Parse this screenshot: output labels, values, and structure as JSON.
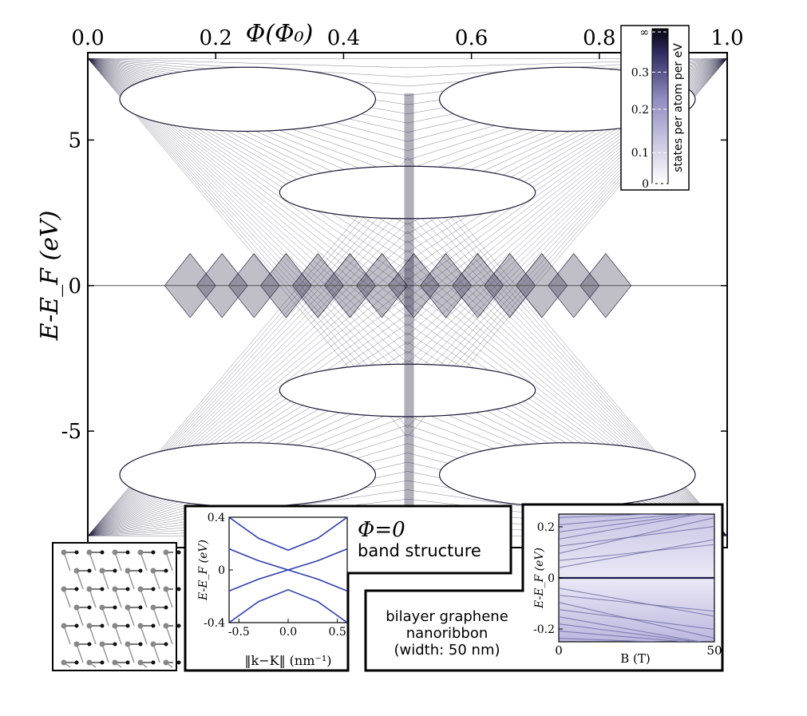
{
  "chart_data": [
    {
      "type": "heatmap",
      "xlabel": "Φ(Φ₀)",
      "ylabel": "E-E_F (eV)",
      "xlim": [
        0.0,
        1.0
      ],
      "ylim": [
        -9,
        8
      ],
      "xticks": [
        "0.0",
        "0.2",
        "0.4",
        "0.6",
        "0.8",
        "1.0"
      ],
      "xtick_values": [
        0.0,
        0.2,
        0.4,
        0.6,
        0.8,
        1.0
      ],
      "yticks": [
        "5",
        "0",
        "-5"
      ],
      "ytick_values": [
        5,
        0,
        -5
      ],
      "colorbar": {
        "label": "states per atom per eV",
        "ticks": [
          "∞",
          "0.3",
          "0.2",
          "0.1",
          "0"
        ],
        "tick_values": [
          999,
          0.3,
          0.2,
          0.1,
          0
        ],
        "color_low": "#ffffff",
        "color_high": "#0b0b1e"
      },
      "accent_color": "#1c1a3a",
      "description_series": [
        {
          "name": "Landau fan up",
          "x": [
            0.0,
            0.5,
            1.0
          ],
          "y": [
            7.8,
            6.6,
            7.8
          ]
        },
        {
          "name": "flat zero band",
          "x": [
            0.0,
            1.0
          ],
          "y": [
            0.0,
            0.0
          ]
        }
      ]
    },
    {
      "type": "line",
      "title": "",
      "annotation_line1": "Φ=0",
      "annotation_line2": "band structure",
      "xlabel": "‖k−K‖ (nm⁻¹)",
      "ylabel": "E-E_F (eV)",
      "xlim": [
        -0.6,
        0.6
      ],
      "ylim": [
        -0.4,
        0.4
      ],
      "xticks": [
        "-0.5",
        "0.0",
        "0.5"
      ],
      "xtick_values": [
        -0.5,
        0.0,
        0.5
      ],
      "yticks": [
        "0.4",
        "0",
        "-0.4"
      ],
      "ytick_values": [
        0.4,
        0,
        -0.4
      ],
      "line_color": "#2f3fae",
      "series": [
        {
          "x": [
            -0.6,
            -0.3,
            0,
            0.3,
            0.6
          ],
          "y": [
            0.4,
            0.24,
            0.15,
            0.24,
            0.4
          ]
        },
        {
          "x": [
            -0.6,
            -0.3,
            0,
            0.3,
            0.6
          ],
          "y": [
            0.16,
            0.07,
            0.0,
            0.07,
            0.16
          ]
        },
        {
          "x": [
            -0.6,
            -0.3,
            0,
            0.3,
            0.6
          ],
          "y": [
            -0.16,
            -0.07,
            0.0,
            -0.07,
            -0.16
          ]
        },
        {
          "x": [
            -0.6,
            -0.3,
            0,
            0.3,
            0.6
          ],
          "y": [
            -0.4,
            -0.24,
            -0.15,
            -0.24,
            -0.4
          ]
        }
      ]
    },
    {
      "type": "heatmap",
      "caption_lines": [
        "bilayer graphene",
        "nanoribbon",
        "(width: 50 nm)"
      ],
      "xlabel": "B (T)",
      "ylabel": "E-E_F (eV)",
      "xlim": [
        0,
        50
      ],
      "ylim": [
        -0.25,
        0.25
      ],
      "xticks": [
        "0",
        "50"
      ],
      "xtick_values": [
        0,
        50
      ],
      "yticks": [
        "0.2",
        "0",
        "-0.2"
      ],
      "ytick_values": [
        0.2,
        0,
        -0.2
      ],
      "color": "#6e6aa8"
    }
  ]
}
